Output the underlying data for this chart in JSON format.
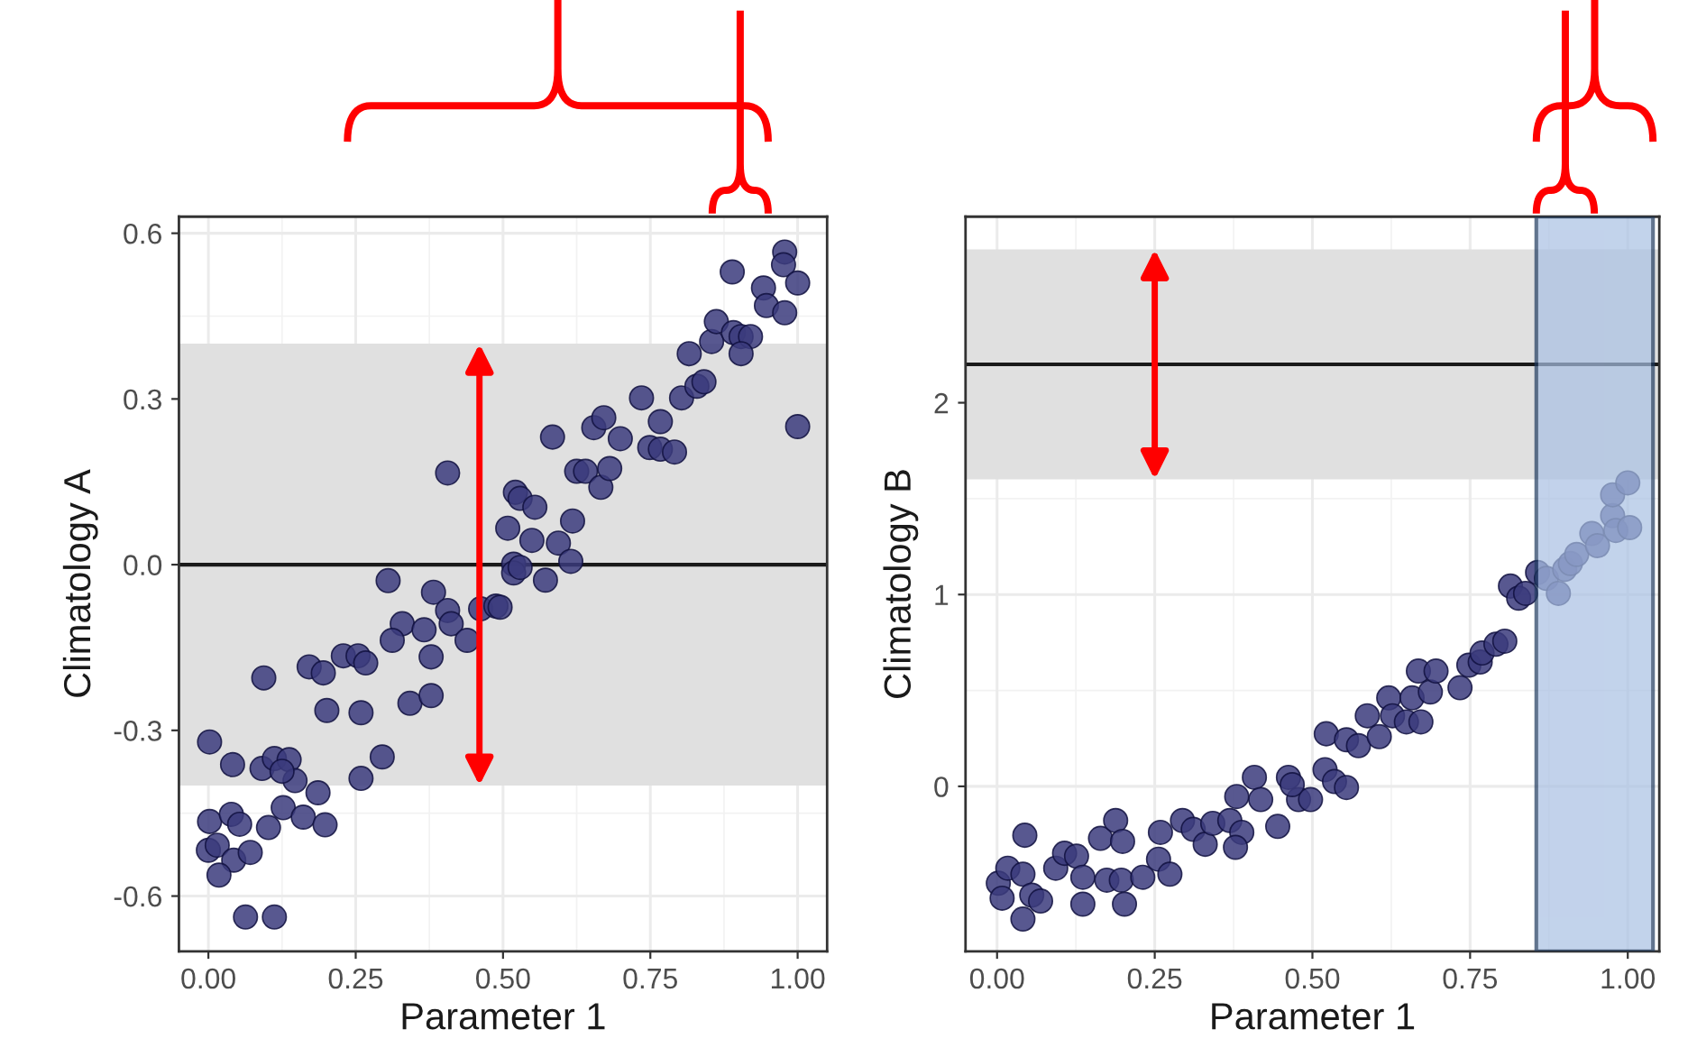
{
  "chart_data": [
    {
      "type": "scatter",
      "xlabel": "Parameter 1",
      "ylabel": "Climatology A",
      "grid": true,
      "marker": "circle",
      "xlim": [
        -0.05,
        1.05
      ],
      "ylim": [
        -0.7,
        0.63
      ],
      "xticks": [
        {
          "value": 0,
          "label": "0.00"
        },
        {
          "value": 0.25,
          "label": "0.25"
        },
        {
          "value": 0.5,
          "label": "0.50"
        },
        {
          "value": 0.75,
          "label": "0.75"
        },
        {
          "value": 1,
          "label": "1.00"
        }
      ],
      "yticks": [
        {
          "value": -0.6,
          "label": "-0.6"
        },
        {
          "value": -0.3,
          "label": "-0.3"
        },
        {
          "value": 0,
          "label": "0.0"
        },
        {
          "value": 0.3,
          "label": "0.3"
        },
        {
          "value": 0.6,
          "label": "0.6"
        }
      ],
      "bands": [
        {
          "axis": "y",
          "from": -0.4,
          "to": 0.4,
          "color": "#e0e0e0"
        }
      ],
      "ref_lines": [
        {
          "axis": "y",
          "value": 0,
          "color": "#1a1a1a"
        }
      ],
      "series": [
        {
          "color": "#3b3b7d",
          "x": [
            0.406,
            0.305,
            0.382,
            0.406,
            0.329,
            0.312,
            0.366,
            0.378,
            0.412,
            0.439,
            0.462,
            0.488,
            0.171,
            0.195,
            0.229,
            0.254,
            0.267,
            0.094,
            0.201,
            0.259,
            0.342,
            0.378,
            0.002,
            0.041,
            0.091,
            0.112,
            0.137,
            0.147,
            0.125,
            0.295,
            0.259,
            0.186,
            0.127,
            0.161,
            0.198,
            0.102,
            0.002,
            0.039,
            0.053,
            0.0,
            0.015,
            0.043,
            0.071,
            0.018,
            0.063,
            0.112,
            0.495,
            0.508,
            0.521,
            0.529,
            0.554,
            0.549,
            0.518,
            0.518,
            0.529,
            0.572,
            0.594,
            0.615,
            0.618,
            0.625,
            0.64,
            0.666,
            0.681,
            0.584,
            0.654,
            0.671,
            0.699,
            0.735,
            0.749,
            0.767,
            0.767,
            0.791,
            0.803,
            0.829,
            0.841,
            0.816,
            0.854,
            0.862,
            0.891,
            0.904,
            0.92,
            0.904,
            0.889,
            0.942,
            0.947,
            0.978,
            0.978,
            0.976,
            1.0,
            1.0
          ],
          "values": [
            0.166,
            -0.029,
            -0.05,
            -0.083,
            -0.107,
            -0.137,
            -0.118,
            -0.167,
            -0.107,
            -0.137,
            -0.08,
            -0.075,
            -0.185,
            -0.196,
            -0.165,
            -0.165,
            -0.178,
            -0.205,
            -0.264,
            -0.268,
            -0.251,
            -0.237,
            -0.321,
            -0.362,
            -0.369,
            -0.351,
            -0.353,
            -0.391,
            -0.374,
            -0.348,
            -0.387,
            -0.413,
            -0.44,
            -0.457,
            -0.471,
            -0.476,
            -0.465,
            -0.452,
            -0.47,
            -0.517,
            -0.508,
            -0.535,
            -0.521,
            -0.562,
            -0.638,
            -0.638,
            -0.077,
            0.066,
            0.131,
            0.12,
            0.104,
            0.044,
            0.001,
            -0.015,
            -0.005,
            -0.028,
            0.039,
            0.006,
            0.079,
            0.169,
            0.169,
            0.14,
            0.174,
            0.231,
            0.248,
            0.266,
            0.228,
            0.302,
            0.212,
            0.259,
            0.209,
            0.204,
            0.302,
            0.323,
            0.331,
            0.382,
            0.404,
            0.44,
            0.42,
            0.413,
            0.413,
            0.382,
            0.53,
            0.501,
            0.469,
            0.456,
            0.566,
            0.543,
            0.51,
            0.25
          ]
        }
      ]
    },
    {
      "type": "scatter",
      "xlabel": "Parameter 1",
      "ylabel": "Climatology B",
      "grid": true,
      "marker": "circle",
      "xlim": [
        -0.05,
        1.05
      ],
      "ylim": [
        -0.86,
        2.97
      ],
      "xticks": [
        {
          "value": 0,
          "label": "0.00"
        },
        {
          "value": 0.25,
          "label": "0.25"
        },
        {
          "value": 0.5,
          "label": "0.50"
        },
        {
          "value": 0.75,
          "label": "0.75"
        },
        {
          "value": 1,
          "label": "1.00"
        }
      ],
      "yticks": [
        0,
        1,
        2
      ],
      "bands": [
        {
          "axis": "y",
          "from": 1.6,
          "to": 2.8,
          "color": "#e0e0e0"
        },
        {
          "axis": "x",
          "from": 0.855,
          "to": 1.04,
          "color": "#a9c0e3"
        }
      ],
      "ref_lines": [
        {
          "axis": "y",
          "value": 2.2,
          "color": "#1a1a1a"
        }
      ],
      "series": [
        {
          "color": "#3b3b7d",
          "x": [
            0.044,
            0.002,
            0.017,
            0.041,
            0.055,
            0.069,
            0.041,
            0.008,
            0.093,
            0.107,
            0.126,
            0.136,
            0.164,
            0.188,
            0.199,
            0.174,
            0.197,
            0.136,
            0.202,
            0.231,
            0.256,
            0.274,
            0.259,
            0.294,
            0.311,
            0.33,
            0.342,
            0.369,
            0.38,
            0.388,
            0.378,
            0.408,
            0.418,
            0.445,
            0.462,
            0.478,
            0.468,
            0.497,
            0.52,
            0.522,
            0.535,
            0.554,
            0.554,
            0.573,
            0.587,
            0.606,
            0.621,
            0.627,
            0.649,
            0.658,
            0.672,
            0.668,
            0.687,
            0.696,
            0.734,
            0.748,
            0.766,
            0.769,
            0.791,
            0.805,
            0.814,
            0.827,
            0.838,
            0.857,
            0.871,
            0.89,
            0.9,
            0.909,
            0.919,
            0.943,
            0.952,
            0.976,
            0.981,
            1.003,
            0.976,
            1.0
          ],
          "values": [
            -0.255,
            -0.505,
            -0.427,
            -0.458,
            -0.567,
            -0.598,
            -0.692,
            -0.583,
            -0.427,
            -0.349,
            -0.364,
            -0.474,
            -0.271,
            -0.178,
            -0.287,
            -0.489,
            -0.489,
            -0.614,
            -0.614,
            -0.474,
            -0.38,
            -0.458,
            -0.24,
            -0.178,
            -0.224,
            -0.302,
            -0.193,
            -0.178,
            -0.053,
            -0.24,
            -0.318,
            0.047,
            -0.069,
            -0.209,
            0.047,
            -0.069,
            0.009,
            -0.069,
            0.087,
            0.274,
            0.025,
            -0.006,
            0.243,
            0.212,
            0.368,
            0.259,
            0.461,
            0.368,
            0.336,
            0.461,
            0.336,
            0.601,
            0.492,
            0.601,
            0.514,
            0.632,
            0.648,
            0.695,
            0.741,
            0.757,
            1.044,
            0.981,
            1.006,
            1.115,
            1.084,
            1.006,
            1.131,
            1.162,
            1.209,
            1.318,
            1.255,
            1.411,
            1.334,
            1.349,
            1.52,
            1.582
          ]
        }
      ]
    }
  ]
}
